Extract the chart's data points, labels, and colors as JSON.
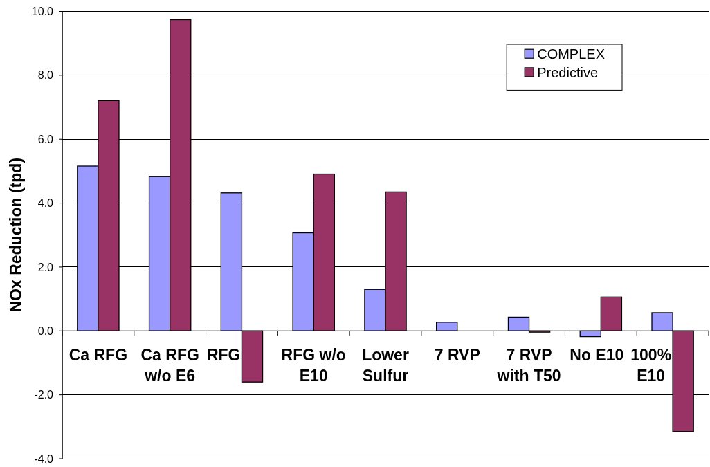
{
  "chart_data": {
    "type": "bar",
    "ylabel": "NOx Reduction (tpd)",
    "categories": [
      "Ca RFG",
      "Ca RFG w/o E6",
      "RFG",
      "RFG w/o E10",
      "Lower Sulfur",
      "7 RVP",
      "7 RVP with T50",
      "No E10",
      "100% E10"
    ],
    "series": [
      {
        "name": "COMPLEX",
        "color": "#9999ff",
        "values": [
          5.16,
          4.83,
          4.32,
          3.07,
          1.3,
          0.27,
          0.43,
          -0.18,
          0.57
        ]
      },
      {
        "name": "Predictive",
        "color": "#993366",
        "values": [
          7.21,
          9.74,
          -1.6,
          4.91,
          4.35,
          null,
          -0.04,
          1.06,
          -3.15
        ]
      }
    ],
    "ylim": [
      -4,
      10
    ],
    "yticks": [
      {
        "value": -4,
        "label": "-4.0"
      },
      {
        "value": -2,
        "label": "-2.0"
      },
      {
        "value": 0,
        "label": "0.0"
      },
      {
        "value": 2,
        "label": "2.0"
      },
      {
        "value": 4,
        "label": "4.0"
      },
      {
        "value": 6,
        "label": "6.0"
      },
      {
        "value": 8,
        "label": "8.0"
      },
      {
        "value": 10,
        "label": "10.0"
      }
    ],
    "grid": "y",
    "legend": "top right"
  }
}
